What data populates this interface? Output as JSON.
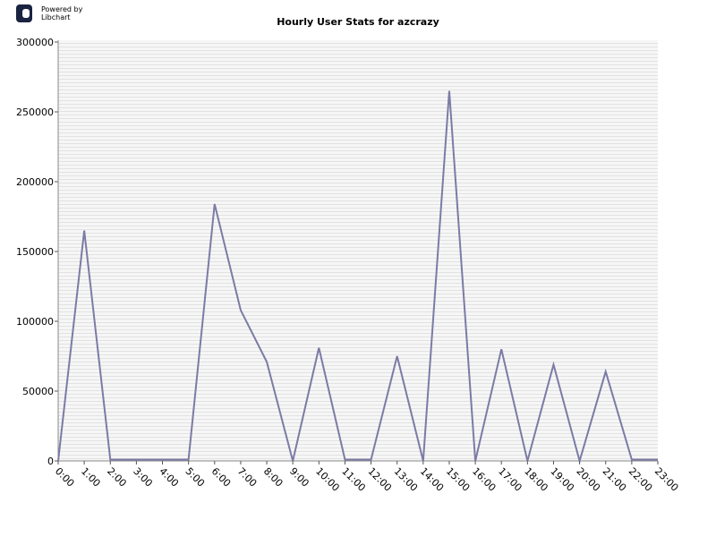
{
  "logo": {
    "line1": "Powered by",
    "line2": "Libchart"
  },
  "chart_data": {
    "type": "line",
    "title": "Hourly User Stats for azcrazy",
    "categories": [
      "0:00",
      "1:00",
      "2:00",
      "3:00",
      "4:00",
      "5:00",
      "6:00",
      "7:00",
      "8:00",
      "9:00",
      "10:00",
      "11:00",
      "12:00",
      "13:00",
      "14:00",
      "15:00",
      "16:00",
      "17:00",
      "18:00",
      "19:00",
      "20:00",
      "21:00",
      "22:00",
      "23:00"
    ],
    "values": [
      0,
      165000,
      1000,
      1000,
      1000,
      1000,
      184000,
      108000,
      71000,
      0,
      81000,
      1000,
      1000,
      75000,
      0,
      265000,
      0,
      80000,
      0,
      69000,
      0,
      64000,
      1000,
      1000
    ],
    "color": "#7b7ba6",
    "ylim": [
      0,
      300000
    ],
    "yticks": [
      0,
      50000,
      100000,
      150000,
      200000,
      250000,
      300000
    ],
    "grid": true
  }
}
